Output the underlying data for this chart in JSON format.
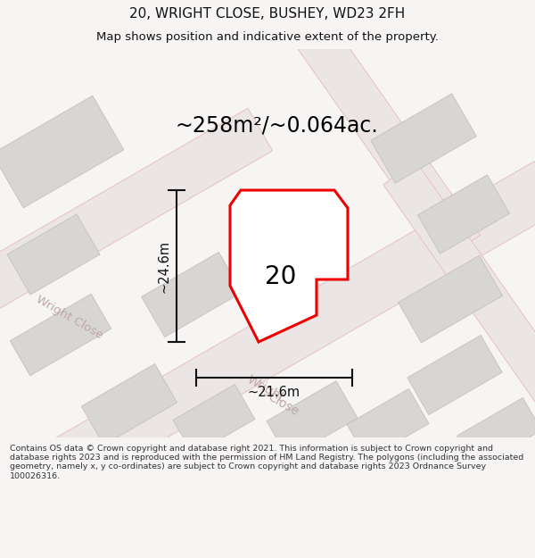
{
  "title": "20, WRIGHT CLOSE, BUSHEY, WD23 2FH",
  "subtitle": "Map shows position and indicative extent of the property.",
  "area_label": "~258m²/~0.064ac.",
  "property_number": "20",
  "dim_width": "~21.6m",
  "dim_height": "~24.6m",
  "footer": "Contains OS data © Crown copyright and database right 2021. This information is subject to Crown copyright and database rights 2023 and is reproduced with the permission of HM Land Registry. The polygons (including the associated geometry, namely x, y co-ordinates) are subject to Crown copyright and database rights 2023 Ordnance Survey 100026316.",
  "bg_color": "#f7f4f4",
  "map_bg": "#f7f4f4",
  "road_fill": "#ebe5e5",
  "road_stroke": "#e8c0c0",
  "building_fill": "#d8d5d5",
  "building_stroke": "#c8c4c4",
  "property_fill": "#ffffff",
  "property_stroke": "#ee0000",
  "dim_color": "#111111",
  "road_label_color": "#c0a8a8",
  "title_color": "#111111",
  "footer_color": "#333333",
  "pink_line": "#f0b0b0"
}
